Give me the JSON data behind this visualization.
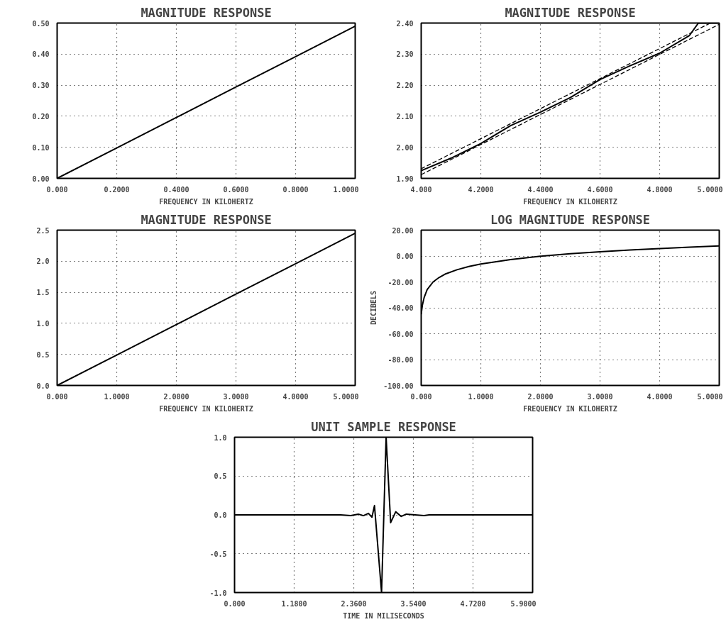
{
  "chart_data": [
    {
      "type": "line",
      "title": "MAGNITUDE RESPONSE",
      "xlabel": "FREQUENCY IN KILOHERTZ",
      "x": [
        0,
        0.2,
        0.4,
        0.6,
        0.8,
        1.0
      ],
      "series": [
        {
          "color": "#000000",
          "values": [
            0,
            0.098,
            0.196,
            0.294,
            0.392,
            0.49
          ]
        }
      ],
      "xlim": [
        0,
        1
      ],
      "ylim": [
        0,
        0.5
      ],
      "xticks": [
        {
          "value": 0,
          "label": "0.000"
        },
        {
          "value": 0.2,
          "label": "0.2000"
        },
        {
          "value": 0.4,
          "label": "0.4000"
        },
        {
          "value": 0.6,
          "label": "0.6000"
        },
        {
          "value": 0.8,
          "label": "0.8000"
        },
        {
          "value": 1.0,
          "label": "1.0000"
        }
      ],
      "yticks": [
        {
          "value": 0,
          "label": "0.00"
        },
        {
          "value": 0.1,
          "label": "0.10"
        },
        {
          "value": 0.2,
          "label": "0.20"
        },
        {
          "value": 0.3,
          "label": "0.30"
        },
        {
          "value": 0.4,
          "label": "0.40"
        },
        {
          "value": 0.5,
          "label": "0.50"
        }
      ],
      "grid": true,
      "line_style": "solid"
    },
    {
      "type": "line",
      "title": "MAGNITUDE RESPONSE",
      "xlabel": "FREQUENCY IN KILOHERTZ",
      "series": [
        {
          "color": "#000000",
          "line_style": "solid",
          "x": [
            4.0,
            4.1,
            4.2,
            4.3,
            4.4,
            4.5,
            4.6,
            4.7,
            4.8,
            4.9,
            4.93,
            5.0
          ],
          "values": [
            1.925,
            1.965,
            2.012,
            2.07,
            2.113,
            2.16,
            2.218,
            2.262,
            2.303,
            2.36,
            2.4,
            2.4
          ]
        },
        {
          "color": "#000000",
          "line_style": "dashed",
          "x": [
            4.0,
            4.97
          ],
          "values": [
            1.931,
            2.4
          ]
        },
        {
          "color": "#000000",
          "line_style": "dashed",
          "x": [
            4.0,
            5.0
          ],
          "values": [
            1.912,
            2.396
          ]
        }
      ],
      "xlim": [
        4,
        5
      ],
      "ylim": [
        1.9,
        2.4
      ],
      "xticks": [
        {
          "value": 4.0,
          "label": "4.000"
        },
        {
          "value": 4.2,
          "label": "4.2000"
        },
        {
          "value": 4.4,
          "label": "4.4000"
        },
        {
          "value": 4.6,
          "label": "4.6000"
        },
        {
          "value": 4.8,
          "label": "4.8000"
        },
        {
          "value": 5.0,
          "label": "5.0000"
        }
      ],
      "yticks": [
        {
          "value": 1.9,
          "label": "1.90"
        },
        {
          "value": 2.0,
          "label": "2.00"
        },
        {
          "value": 2.1,
          "label": "2.10"
        },
        {
          "value": 2.2,
          "label": "2.20"
        },
        {
          "value": 2.3,
          "label": "2.30"
        },
        {
          "value": 2.4,
          "label": "2.40"
        }
      ],
      "grid": true
    },
    {
      "type": "line",
      "title": "MAGNITUDE RESPONSE",
      "xlabel": "FREQUENCY IN KILOHERTZ",
      "x": [
        0,
        1,
        2,
        3,
        4,
        5
      ],
      "series": [
        {
          "color": "#000000",
          "values": [
            0,
            0.49,
            0.98,
            1.47,
            1.96,
            2.45
          ]
        }
      ],
      "xlim": [
        0,
        5
      ],
      "ylim": [
        0,
        2.5
      ],
      "xticks": [
        {
          "value": 0,
          "label": "0.000"
        },
        {
          "value": 1,
          "label": "1.0000"
        },
        {
          "value": 2,
          "label": "2.0000"
        },
        {
          "value": 3,
          "label": "3.0000"
        },
        {
          "value": 4,
          "label": "4.0000"
        },
        {
          "value": 5,
          "label": "5.0000"
        }
      ],
      "yticks": [
        {
          "value": 0,
          "label": "0.0"
        },
        {
          "value": 0.5,
          "label": "0.5"
        },
        {
          "value": 1.0,
          "label": "1.0"
        },
        {
          "value": 1.5,
          "label": "1.5"
        },
        {
          "value": 2.0,
          "label": "2.0"
        },
        {
          "value": 2.5,
          "label": "2.5"
        }
      ],
      "grid": true,
      "line_style": "solid"
    },
    {
      "type": "line",
      "title": "LOG MAGNITUDE RESPONSE",
      "xlabel": "FREQUENCY IN KILOHERTZ",
      "ylabel": "DECIBELS",
      "x": [
        0,
        0.02,
        0.05,
        0.1,
        0.2,
        0.3,
        0.4,
        0.6,
        0.8,
        1.0,
        1.5,
        2.0,
        2.5,
        3.0,
        3.5,
        4.0,
        4.5,
        5.0
      ],
      "series": [
        {
          "color": "#000000",
          "values": [
            -45,
            -38,
            -32,
            -26,
            -20,
            -16.6,
            -14,
            -10.6,
            -8.1,
            -6.2,
            -2.7,
            -0.2,
            1.8,
            3.3,
            4.7,
            5.8,
            6.9,
            7.8
          ]
        }
      ],
      "xlim": [
        0,
        5
      ],
      "ylim": [
        -100,
        20
      ],
      "xticks": [
        {
          "value": 0,
          "label": "0.000"
        },
        {
          "value": 1,
          "label": "1.0000"
        },
        {
          "value": 2,
          "label": "2.0000"
        },
        {
          "value": 3,
          "label": "3.0000"
        },
        {
          "value": 4,
          "label": "4.0000"
        },
        {
          "value": 5,
          "label": "5.0000"
        }
      ],
      "yticks": [
        {
          "value": 20,
          "label": "20.00"
        },
        {
          "value": 0,
          "label": "0.00"
        },
        {
          "value": -20,
          "label": "-20.00"
        },
        {
          "value": -40,
          "label": "-40.00"
        },
        {
          "value": -60,
          "label": "-60.00"
        },
        {
          "value": -80,
          "label": "-80.00"
        },
        {
          "value": -100,
          "label": "-100.00"
        }
      ],
      "grid": true,
      "line_style": "solid"
    },
    {
      "type": "line",
      "title": "UNIT SAMPLE RESPONSE",
      "xlabel": "TIME IN MILISECONDS",
      "x": [
        0,
        2.0,
        2.1,
        2.3,
        2.45,
        2.55,
        2.65,
        2.72,
        2.77,
        2.91,
        3.0,
        3.09,
        3.19,
        3.3,
        3.4,
        3.75,
        3.85,
        5.9
      ],
      "series": [
        {
          "color": "#000000",
          "values": [
            0,
            0,
            0,
            -0.01,
            0.01,
            -0.01,
            0.02,
            -0.03,
            0.12,
            -1.0,
            1.0,
            -0.1,
            0.04,
            -0.02,
            0.01,
            -0.01,
            0,
            0
          ]
        }
      ],
      "xlim": [
        0,
        5.9
      ],
      "ylim": [
        -1,
        1
      ],
      "xticks": [
        {
          "value": 0,
          "label": "0.000"
        },
        {
          "value": 1.18,
          "label": "1.1800"
        },
        {
          "value": 2.36,
          "label": "2.3600"
        },
        {
          "value": 3.54,
          "label": "3.5400"
        },
        {
          "value": 4.72,
          "label": "4.7200"
        },
        {
          "value": 5.9,
          "label": "5.9000"
        }
      ],
      "yticks": [
        {
          "value": -1,
          "label": "-1.0"
        },
        {
          "value": -0.5,
          "label": "-0.5"
        },
        {
          "value": 0,
          "label": "0.0"
        },
        {
          "value": 0.5,
          "label": "0.5"
        },
        {
          "value": 1.0,
          "label": "1.0"
        }
      ],
      "grid": true,
      "line_style": "solid"
    }
  ]
}
